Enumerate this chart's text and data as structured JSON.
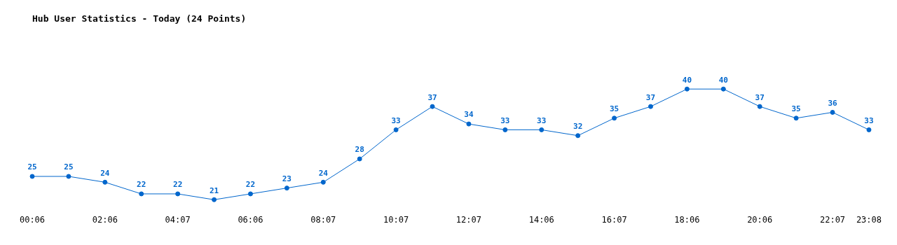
{
  "chart_data": {
    "type": "line",
    "title": "Hub User Statistics - Today (24 Points)",
    "categories": [
      "00:06",
      null,
      "02:06",
      null,
      "04:07",
      null,
      "06:06",
      null,
      "08:07",
      null,
      "10:07",
      null,
      "12:07",
      null,
      "14:06",
      null,
      "16:07",
      null,
      "18:06",
      null,
      "20:06",
      null,
      "22:07",
      "23:08"
    ],
    "series": [
      {
        "color": "#0066cc",
        "values": [
          25,
          25,
          24,
          22,
          22,
          21,
          22,
          23,
          24,
          28,
          33,
          37,
          34,
          33,
          33,
          32,
          35,
          37,
          40,
          40,
          37,
          35,
          36,
          33
        ]
      }
    ],
    "data_labels": true,
    "marker": "circle"
  }
}
